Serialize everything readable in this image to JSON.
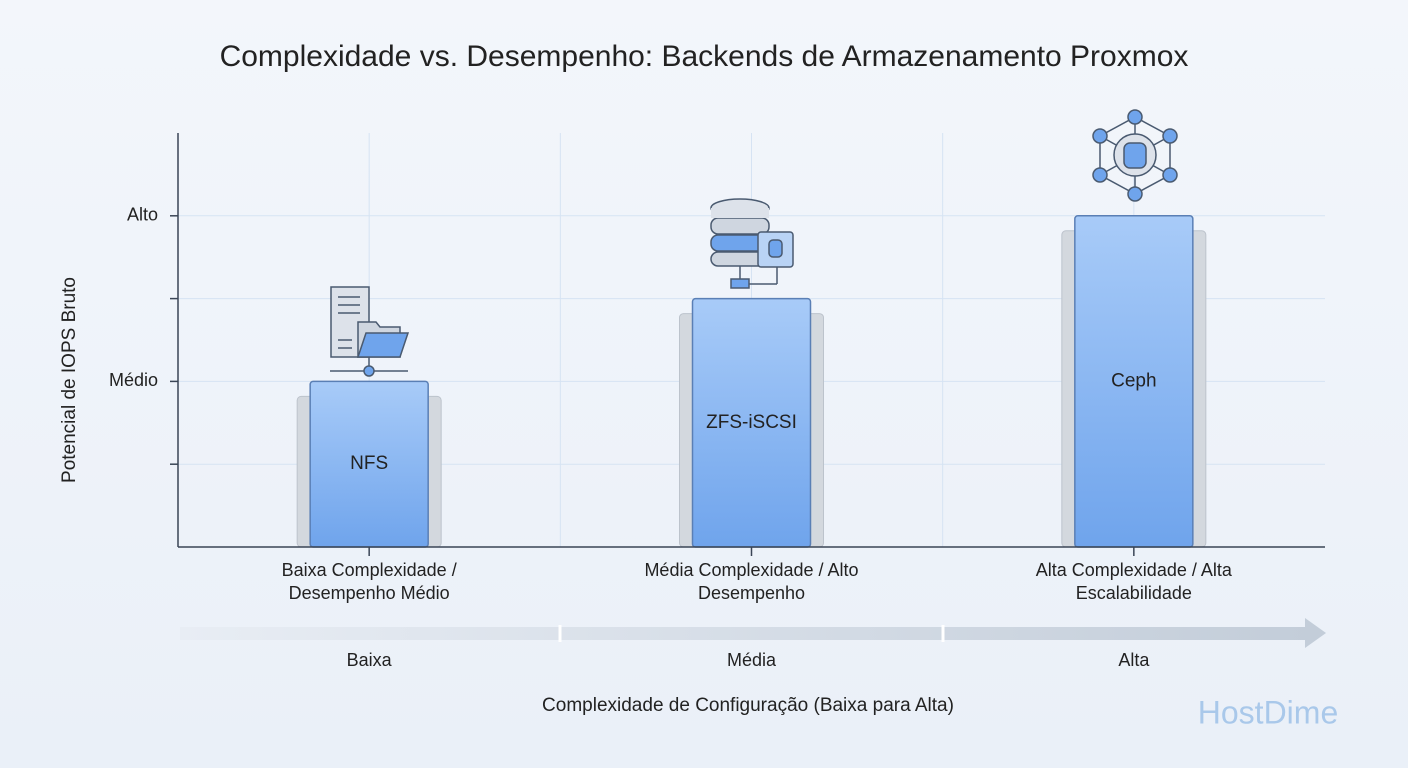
{
  "chart_data": {
    "type": "bar",
    "title": "Complexidade vs. Desempenho: Backends de Armazenamento Proxmox",
    "categories": [
      "Baixa Complexidade / Desempenho Médio",
      "Média Complexidade / Alto Desempenho",
      "Alta Complexidade / Alta Escalabilidade"
    ],
    "bar_labels": [
      "NFS",
      "ZFS-iSCSI",
      "Ceph"
    ],
    "values": [
      2,
      3,
      4
    ],
    "color": "#7aaaf0",
    "ylim": [
      0,
      5
    ],
    "yticks": [
      {
        "value": 1,
        "label": null
      },
      {
        "value": 2,
        "label": "Médio"
      },
      {
        "value": 3,
        "label": null
      },
      {
        "value": 4,
        "label": "Alto"
      }
    ],
    "grid": true,
    "y_label": "Potencial de IOPS Bruto",
    "x_label": "Complexidade de Configuração (Baixa para Alta)",
    "scale_labels": [
      "Baixa",
      "Média",
      "Alta"
    ],
    "watermark": "HostDime"
  }
}
